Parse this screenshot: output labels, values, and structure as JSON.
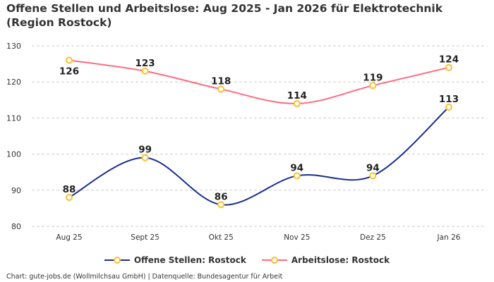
{
  "title": "Offene Stellen und Arbeitslose: Aug 2025 - Jan 2026 für Elektrotechnik (Region Rostock)",
  "footer": "Chart: gute-jobs.de (Wollmilchsau GmbH) | Datenquelle: Bundesagentur für Arbeit",
  "chart_data": {
    "type": "line",
    "title": "Offene Stellen und Arbeitslose: Aug 2025 - Jan 2026 für Elektrotechnik (Region Rostock)",
    "categories": [
      "Aug 25",
      "Sept 25",
      "Okt 25",
      "Nov 25",
      "Dez 25",
      "Jan 26"
    ],
    "ylim": [
      80,
      130
    ],
    "yticks": [
      80,
      90,
      100,
      110,
      120,
      130
    ],
    "grid": true,
    "legend": "bottom",
    "marker_color": "#fbc02d",
    "series": [
      {
        "name": "Offene Stellen: Rostock",
        "color": "#1a2f8f",
        "values": [
          88,
          99,
          86,
          94,
          94,
          113
        ],
        "label_pos": [
          "above",
          "above",
          "above",
          "above",
          "above",
          "above"
        ]
      },
      {
        "name": "Arbeitslose: Rostock",
        "color": "#ff6b81",
        "values": [
          126,
          123,
          118,
          114,
          119,
          124
        ],
        "label_pos": [
          "below",
          "above",
          "above",
          "above",
          "above",
          "above"
        ]
      }
    ]
  }
}
